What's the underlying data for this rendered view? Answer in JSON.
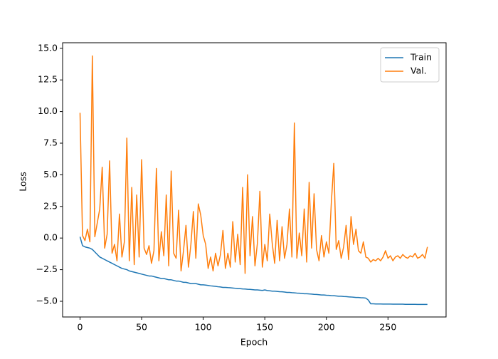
{
  "chart_data": {
    "type": "line",
    "xlabel": "Epoch",
    "ylabel": "Loss",
    "x": [
      0,
      2,
      4,
      6,
      8,
      10,
      12,
      14,
      16,
      18,
      20,
      22,
      24,
      26,
      28,
      30,
      32,
      34,
      36,
      38,
      40,
      42,
      44,
      46,
      48,
      50,
      52,
      54,
      56,
      58,
      60,
      62,
      64,
      66,
      68,
      70,
      72,
      74,
      76,
      78,
      80,
      82,
      84,
      86,
      88,
      90,
      92,
      94,
      96,
      98,
      100,
      102,
      104,
      106,
      108,
      110,
      112,
      114,
      116,
      118,
      120,
      122,
      124,
      126,
      128,
      130,
      132,
      134,
      136,
      138,
      140,
      142,
      144,
      146,
      148,
      150,
      152,
      154,
      156,
      158,
      160,
      162,
      164,
      166,
      168,
      170,
      172,
      174,
      176,
      178,
      180,
      182,
      184,
      186,
      188,
      190,
      192,
      194,
      196,
      198,
      200,
      202,
      204,
      206,
      208,
      210,
      212,
      214,
      216,
      218,
      220,
      222,
      224,
      226,
      228,
      230,
      232,
      234,
      236,
      238,
      240,
      242,
      244,
      246,
      248,
      250,
      252,
      254,
      256,
      258,
      260,
      262,
      264,
      266,
      268,
      270,
      272,
      274,
      276,
      278,
      280,
      282
    ],
    "series": [
      {
        "name": "Train",
        "color": "#1f77b4",
        "values": [
          0.1,
          -0.6,
          -0.7,
          -0.75,
          -0.8,
          -0.9,
          -1.1,
          -1.3,
          -1.5,
          -1.6,
          -1.7,
          -1.8,
          -1.9,
          -2.0,
          -2.1,
          -2.2,
          -2.3,
          -2.4,
          -2.45,
          -2.5,
          -2.6,
          -2.65,
          -2.7,
          -2.75,
          -2.8,
          -2.85,
          -2.9,
          -2.95,
          -3.0,
          -3.0,
          -3.05,
          -3.1,
          -3.15,
          -3.2,
          -3.2,
          -3.25,
          -3.3,
          -3.3,
          -3.35,
          -3.4,
          -3.4,
          -3.45,
          -3.5,
          -3.5,
          -3.55,
          -3.6,
          -3.6,
          -3.6,
          -3.65,
          -3.7,
          -3.7,
          -3.72,
          -3.75,
          -3.78,
          -3.8,
          -3.82,
          -3.85,
          -3.87,
          -3.9,
          -3.9,
          -3.92,
          -3.93,
          -3.95,
          -3.97,
          -4.0,
          -4.0,
          -4.02,
          -4.03,
          -4.05,
          -4.06,
          -4.08,
          -4.1,
          -4.1,
          -4.12,
          -4.14,
          -4.1,
          -4.15,
          -4.17,
          -4.2,
          -4.2,
          -4.22,
          -4.24,
          -4.25,
          -4.27,
          -4.3,
          -4.3,
          -4.32,
          -4.33,
          -4.35,
          -4.36,
          -4.38,
          -4.4,
          -4.4,
          -4.42,
          -4.43,
          -4.45,
          -4.46,
          -4.48,
          -4.5,
          -4.5,
          -4.52,
          -4.53,
          -4.55,
          -4.56,
          -4.58,
          -4.6,
          -4.6,
          -4.62,
          -4.63,
          -4.65,
          -4.66,
          -4.68,
          -4.7,
          -4.7,
          -4.72,
          -4.73,
          -4.75,
          -4.9,
          -5.2,
          -5.2,
          -5.21,
          -5.21,
          -5.21,
          -5.22,
          -5.22,
          -5.22,
          -5.22,
          -5.23,
          -5.23,
          -5.23,
          -5.23,
          -5.23,
          -5.24,
          -5.24,
          -5.24,
          -5.24,
          -5.24,
          -5.25,
          -5.25,
          -5.25,
          -5.25,
          -5.25
        ]
      },
      {
        "name": "Val.",
        "color": "#ff7f0e",
        "values": [
          9.9,
          0.2,
          -0.2,
          0.7,
          -0.3,
          14.4,
          0.1,
          1.2,
          2.3,
          5.6,
          -0.8,
          0.3,
          6.1,
          -1.2,
          -0.5,
          -1.8,
          1.9,
          -1.5,
          -0.3,
          7.9,
          -1.8,
          4.0,
          -2.1,
          3.4,
          -1.5,
          6.2,
          -0.8,
          -1.3,
          -0.6,
          -2.0,
          -1.0,
          5.5,
          -1.8,
          0.5,
          -1.4,
          3.4,
          -2.2,
          5.3,
          -1.2,
          -1.6,
          2.2,
          -2.6,
          -1.0,
          1.0,
          -2.3,
          -0.5,
          2.1,
          -1.6,
          2.7,
          1.8,
          0.2,
          -0.5,
          -2.4,
          -1.5,
          -2.6,
          -1.2,
          -2.2,
          -1.3,
          0.6,
          -2.4,
          -1.2,
          -2.3,
          1.3,
          -1.9,
          0.3,
          -2.1,
          4.0,
          -2.8,
          5.0,
          -1.4,
          1.7,
          -2.2,
          -0.4,
          3.7,
          -2.3,
          -0.5,
          -1.8,
          1.9,
          -0.4,
          -2.0,
          1.4,
          -1.8,
          0.9,
          -1.6,
          -0.5,
          2.3,
          -1.5,
          9.1,
          -1.6,
          0.4,
          -1.4,
          2.3,
          -1.9,
          4.4,
          -0.8,
          3.5,
          -0.9,
          -1.8,
          0.2,
          -1.5,
          -0.3,
          -1.2,
          2.8,
          5.9,
          -0.9,
          -0.2,
          -1.6,
          -0.7,
          1.0,
          -1.7,
          1.7,
          -0.5,
          0.7,
          -1.0,
          -1.2,
          -0.3,
          -1.5,
          -1.6,
          -1.9,
          -1.7,
          -1.8,
          -1.6,
          -1.8,
          -1.5,
          -1.0,
          -1.6,
          -1.4,
          -1.8,
          -1.5,
          -1.4,
          -1.6,
          -1.3,
          -1.5,
          -1.6,
          -1.4,
          -1.5,
          -1.2,
          -1.6,
          -1.5,
          -1.3,
          -1.6,
          -0.7
        ]
      }
    ],
    "xlim": [
      -14.15,
      297.15
    ],
    "xticks": [
      0,
      50,
      100,
      150,
      200,
      250
    ],
    "ylim": [
      -6.24,
      15.44
    ],
    "yticks": [
      {
        "value": -5,
        "label": "−5.0"
      },
      {
        "value": -2.5,
        "label": "−2.5"
      },
      {
        "value": 0,
        "label": "0.0"
      },
      2.5,
      {
        "value": 5,
        "label": "5.0"
      },
      7.5,
      {
        "value": 10,
        "label": "10.0"
      },
      12.5,
      {
        "value": 15,
        "label": "15.0"
      }
    ],
    "grid": false,
    "legend": "upper right"
  }
}
